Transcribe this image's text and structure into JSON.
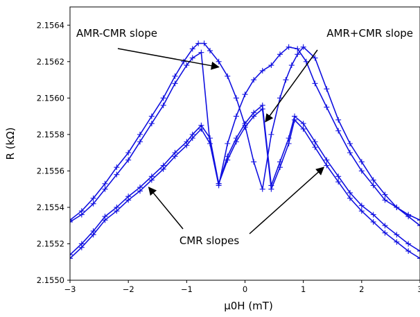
{
  "colors": {
    "series": "#1010e0",
    "axis": "#000000",
    "arrow": "#000000"
  },
  "chart_data": {
    "type": "line",
    "xlabel": "μ0H (mT)",
    "ylabel": "R (kΩ)",
    "xlim": [
      -3,
      3
    ],
    "ylim": [
      2.155,
      2.1565
    ],
    "xticks": [
      "−3",
      "−2",
      "−1",
      "0",
      "1",
      "2",
      "3"
    ],
    "xtick_values": [
      -3,
      -2,
      -1,
      0,
      1,
      2,
      3
    ],
    "yticks": [
      "2.1550",
      "2.1552",
      "2.1554",
      "2.1556",
      "2.1558",
      "2.1560",
      "2.1562",
      "2.1564"
    ],
    "ytick_values": [
      2.155,
      2.1552,
      2.1554,
      2.1556,
      2.1558,
      2.156,
      2.1562,
      2.1564
    ],
    "grid": false,
    "marker": "+",
    "series": [
      {
        "x": [
          -3.0,
          -2.8,
          -2.6,
          -2.4,
          -2.2,
          -2.0,
          -1.8,
          -1.6,
          -1.4,
          -1.2,
          -1.05,
          -0.9,
          -0.8,
          -0.7,
          -0.6,
          -0.45,
          -0.3,
          -0.15,
          0.0,
          0.15,
          0.3,
          0.45,
          0.6,
          0.7,
          0.8,
          0.9,
          1.0,
          1.2,
          1.4,
          1.6,
          1.8,
          2.0,
          2.2,
          2.4,
          2.6,
          2.8,
          3.0
        ],
        "y": [
          2.15533,
          2.15538,
          2.15545,
          2.15553,
          2.15562,
          2.1557,
          2.1558,
          2.1559,
          2.156,
          2.15612,
          2.1562,
          2.15627,
          2.1563,
          2.1563,
          2.15626,
          2.1562,
          2.15612,
          2.156,
          2.15585,
          2.15565,
          2.1555,
          2.1558,
          2.156,
          2.1561,
          2.15618,
          2.15624,
          2.15628,
          2.15622,
          2.15605,
          2.15588,
          2.15575,
          2.15565,
          2.15555,
          2.15547,
          2.1554,
          2.15535,
          2.1553
        ]
      },
      {
        "x": [
          -3.0,
          -2.8,
          -2.6,
          -2.4,
          -2.2,
          -2.0,
          -1.8,
          -1.6,
          -1.4,
          -1.2,
          -1.0,
          -0.9,
          -0.75,
          -0.6,
          -0.45,
          -0.3,
          -0.15,
          0.0,
          0.15,
          0.3,
          0.45,
          0.6,
          0.75,
          0.9,
          1.05,
          1.2,
          1.4,
          1.6,
          1.8,
          2.0,
          2.2,
          2.4,
          2.6,
          2.8,
          3.0
        ],
        "y": [
          2.15532,
          2.15536,
          2.15542,
          2.1555,
          2.15558,
          2.15566,
          2.15576,
          2.15586,
          2.15596,
          2.15608,
          2.15618,
          2.15622,
          2.15625,
          2.15575,
          2.15552,
          2.15575,
          2.1559,
          2.15602,
          2.1561,
          2.15615,
          2.15618,
          2.15624,
          2.15628,
          2.15627,
          2.1562,
          2.15608,
          2.15595,
          2.15582,
          2.1557,
          2.1556,
          2.15552,
          2.15544,
          2.1554,
          2.15536,
          2.15533
        ]
      },
      {
        "x": [
          -3.0,
          -2.8,
          -2.6,
          -2.4,
          -2.2,
          -2.0,
          -1.8,
          -1.6,
          -1.4,
          -1.2,
          -1.0,
          -0.9,
          -0.75,
          -0.6,
          -0.45,
          -0.3,
          -0.15,
          0.0,
          0.15,
          0.3,
          0.45,
          0.6,
          0.75,
          0.85,
          1.0,
          1.2,
          1.4,
          1.6,
          1.8,
          2.0,
          2.2,
          2.4,
          2.6,
          2.8,
          3.0
        ],
        "y": [
          2.15514,
          2.1552,
          2.15527,
          2.15535,
          2.1554,
          2.15546,
          2.15551,
          2.15557,
          2.15563,
          2.1557,
          2.15576,
          2.1558,
          2.15585,
          2.15578,
          2.15553,
          2.15568,
          2.15578,
          2.15586,
          2.15592,
          2.15596,
          2.15552,
          2.15565,
          2.15578,
          2.1559,
          2.15586,
          2.15576,
          2.15566,
          2.15557,
          2.15548,
          2.15541,
          2.15536,
          2.1553,
          2.15525,
          2.1552,
          2.15516
        ]
      },
      {
        "x": [
          -3.0,
          -2.8,
          -2.6,
          -2.4,
          -2.2,
          -2.0,
          -1.8,
          -1.6,
          -1.4,
          -1.2,
          -1.0,
          -0.9,
          -0.75,
          -0.6,
          -0.45,
          -0.3,
          -0.15,
          0.0,
          0.15,
          0.3,
          0.45,
          0.6,
          0.75,
          0.85,
          1.0,
          1.2,
          1.4,
          1.6,
          1.8,
          2.0,
          2.2,
          2.4,
          2.6,
          2.8,
          3.0
        ],
        "y": [
          2.15512,
          2.15518,
          2.15525,
          2.15533,
          2.15538,
          2.15544,
          2.15549,
          2.15555,
          2.15561,
          2.15568,
          2.15574,
          2.15578,
          2.15583,
          2.15575,
          2.15553,
          2.15566,
          2.15576,
          2.15584,
          2.1559,
          2.15594,
          2.1555,
          2.15562,
          2.15575,
          2.15588,
          2.15583,
          2.15573,
          2.15563,
          2.15554,
          2.15545,
          2.15538,
          2.15532,
          2.15526,
          2.15521,
          2.15516,
          2.15512
        ]
      }
    ],
    "annotations": [
      {
        "text": "AMR-CMR slope",
        "target": [
          -0.45,
          2.15617
        ]
      },
      {
        "text": "AMR+CMR slope",
        "target": [
          0.35,
          2.15587
        ]
      },
      {
        "text": "CMR slopes",
        "targets": [
          [
            -1.65,
            2.15551
          ],
          [
            1.35,
            2.15562
          ]
        ]
      }
    ]
  }
}
